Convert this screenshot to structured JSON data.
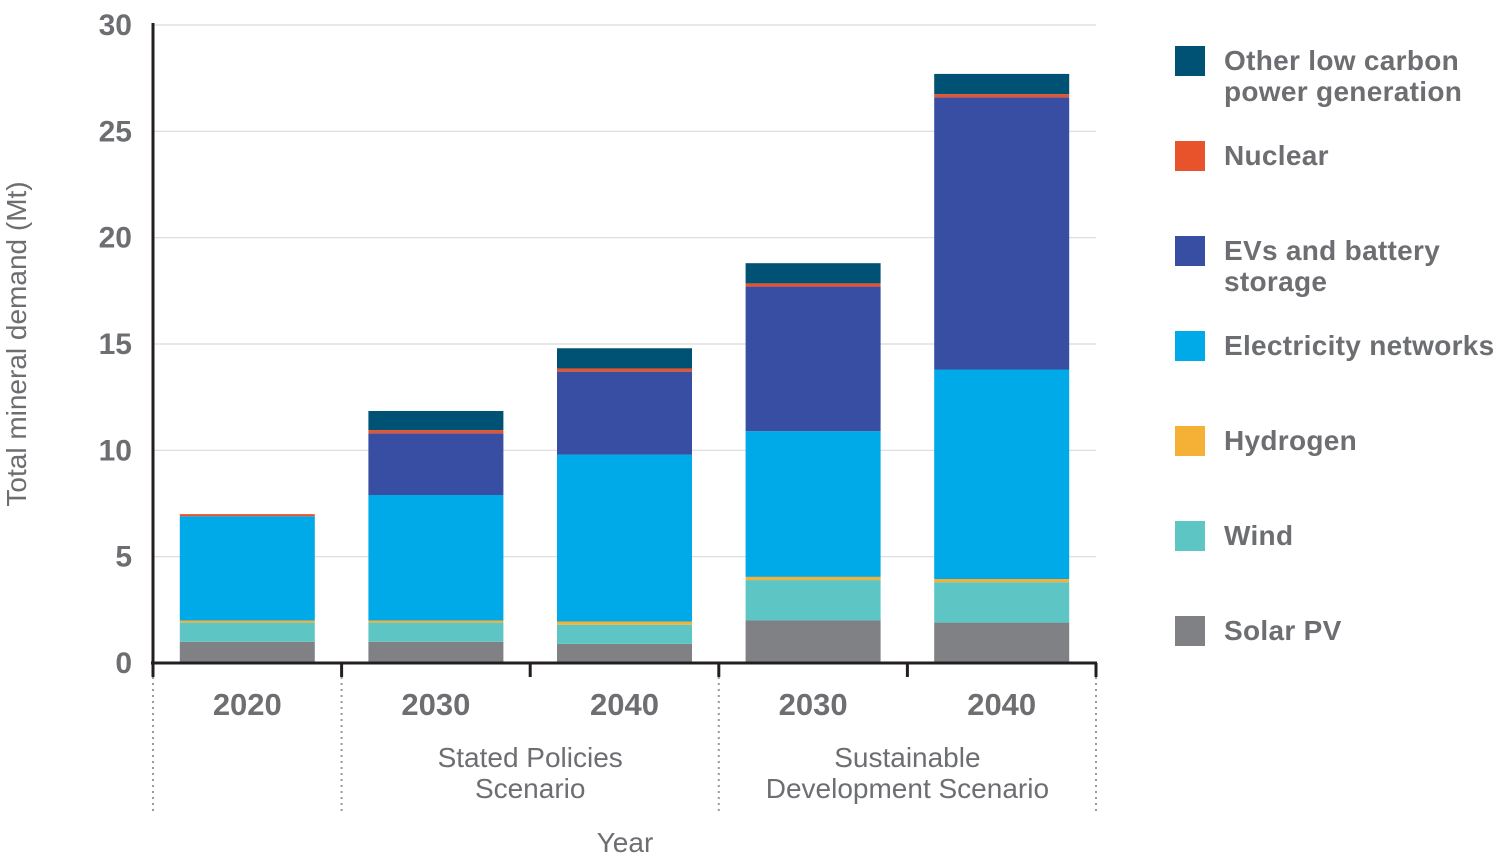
{
  "chart_data": {
    "type": "bar",
    "stacked": true,
    "ylabel": "Total mineral demand (Mt)",
    "xlabel": "Year",
    "ylim": [
      0,
      30
    ],
    "yticks": [
      0,
      5,
      10,
      15,
      20,
      25,
      30
    ],
    "grid": true,
    "legend_position": "right",
    "categories": [
      "2020",
      "2030",
      "2040",
      "2030",
      "2040"
    ],
    "groups": [
      {
        "label_lines": [],
        "categories": [
          0
        ]
      },
      {
        "label_lines": [
          "Stated Policies",
          "Scenario"
        ],
        "categories": [
          1,
          2
        ]
      },
      {
        "label_lines": [
          "Sustainable",
          "Development Scenario"
        ],
        "categories": [
          3,
          4
        ]
      }
    ],
    "series": [
      {
        "name": "Solar PV",
        "color": "#808184",
        "values": [
          1.0,
          1.0,
          0.9,
          2.0,
          1.9
        ]
      },
      {
        "name": "Wind",
        "color": "#5dc6c4",
        "values": [
          0.9,
          0.9,
          0.9,
          1.9,
          1.9
        ]
      },
      {
        "name": "Hydrogen",
        "color": "#f5b135",
        "values": [
          0.1,
          0.1,
          0.15,
          0.15,
          0.15
        ]
      },
      {
        "name": "Electricity networks",
        "color": "#00a9e8",
        "values": [
          4.9,
          5.9,
          7.85,
          6.85,
          9.85
        ]
      },
      {
        "name": "EVs and battery storage",
        "color": "#384ea2",
        "values": [
          0.0,
          2.9,
          3.9,
          6.8,
          12.8
        ]
      },
      {
        "name": "Nuclear",
        "color": "#e9532c",
        "values": [
          0.1,
          0.15,
          0.15,
          0.15,
          0.15
        ]
      },
      {
        "name": "Other low carbon power generation",
        "color": "#005274",
        "values": [
          0.0,
          0.9,
          0.95,
          0.95,
          0.95
        ]
      }
    ]
  },
  "legend": [
    {
      "label": "Other low carbon power generation",
      "color": "#005274"
    },
    {
      "label": "Nuclear",
      "color": "#e9532c"
    },
    {
      "label": "EVs and battery storage",
      "color": "#384ea2"
    },
    {
      "label": "Electricity networks",
      "color": "#00a9e8"
    },
    {
      "label": "Hydrogen",
      "color": "#f5b135"
    },
    {
      "label": "Wind",
      "color": "#5dc6c4"
    },
    {
      "label": "Solar PV",
      "color": "#808184"
    }
  ]
}
